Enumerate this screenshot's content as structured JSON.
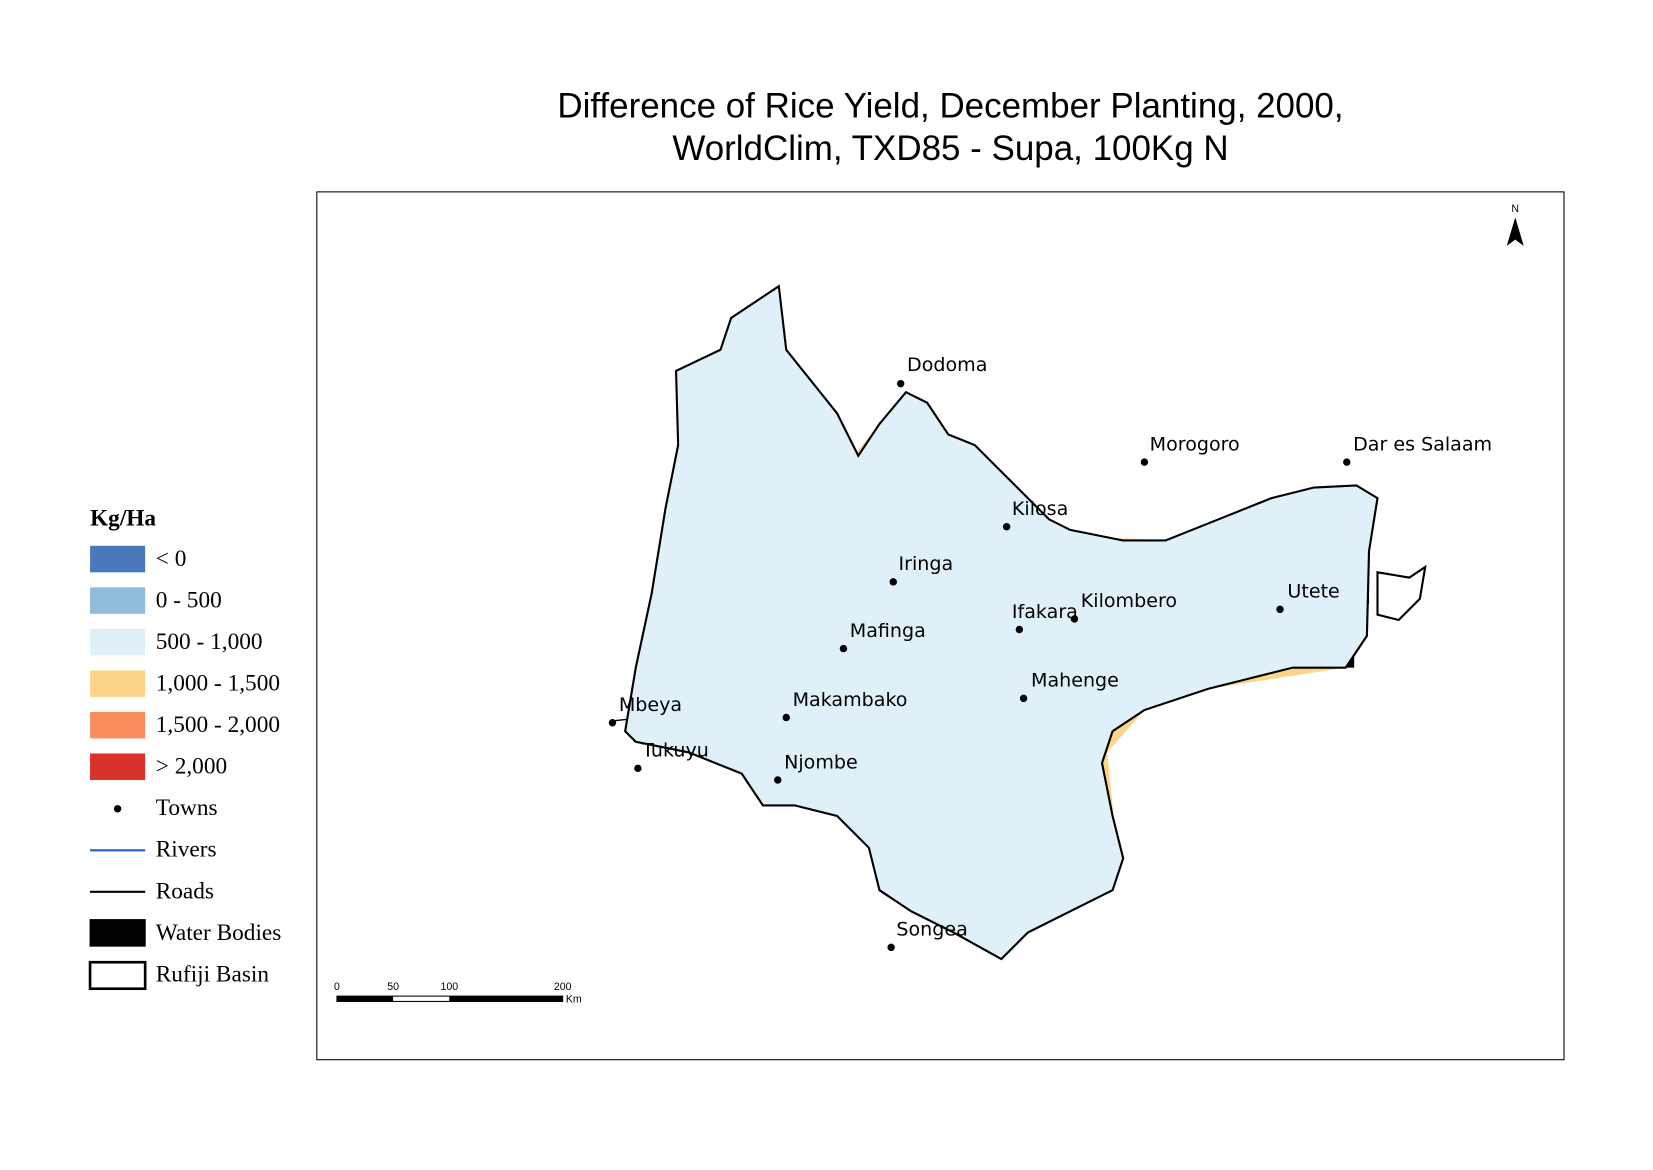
{
  "title": [
    "Difference of Rice Yield, December Planting, 2000,",
    "WorldClim, TXD85 - Supa, 100Kg N"
  ],
  "legend": {
    "title": "Kg/Ha",
    "items": [
      {
        "label": "< 0",
        "symbol": "patch",
        "color": "#4a78bc"
      },
      {
        "label": "0 - 500",
        "symbol": "patch",
        "color": "#92bcdc"
      },
      {
        "label": "500 - 1,000",
        "symbol": "patch",
        "color": "#dff0f8"
      },
      {
        "label": "1,000 - 1,500",
        "symbol": "patch",
        "color": "#fdd58a"
      },
      {
        "label": "1,500 - 2,000",
        "symbol": "patch",
        "color": "#f98d5c"
      },
      {
        "label": "> 2,000",
        "symbol": "patch",
        "color": "#d9322a"
      },
      {
        "label": "Towns",
        "symbol": "point",
        "color": "#000000"
      },
      {
        "label": "Rivers",
        "symbol": "line",
        "color": "#2060c0"
      },
      {
        "label": "Roads",
        "symbol": "line",
        "color": "#000000"
      },
      {
        "label": "Water Bodies",
        "symbol": "patch",
        "color": "#000000"
      },
      {
        "label": "Rufiji Basin",
        "symbol": "outline",
        "color": "#000000"
      }
    ]
  },
  "towns": [
    "Dodoma",
    "Morogoro",
    "Dar es Salaam",
    "Kilosa",
    "Iringa",
    "Ifakara",
    "Kilombero",
    "Utete",
    "Mafinga",
    "Mahenge",
    "Makambako",
    "Mbeya",
    "Tukuyu",
    "Njombe",
    "Songea"
  ],
  "scale_bar": {
    "labels": [
      "0",
      "50",
      "100",
      "200",
      "Km"
    ]
  },
  "north_label": "N"
}
